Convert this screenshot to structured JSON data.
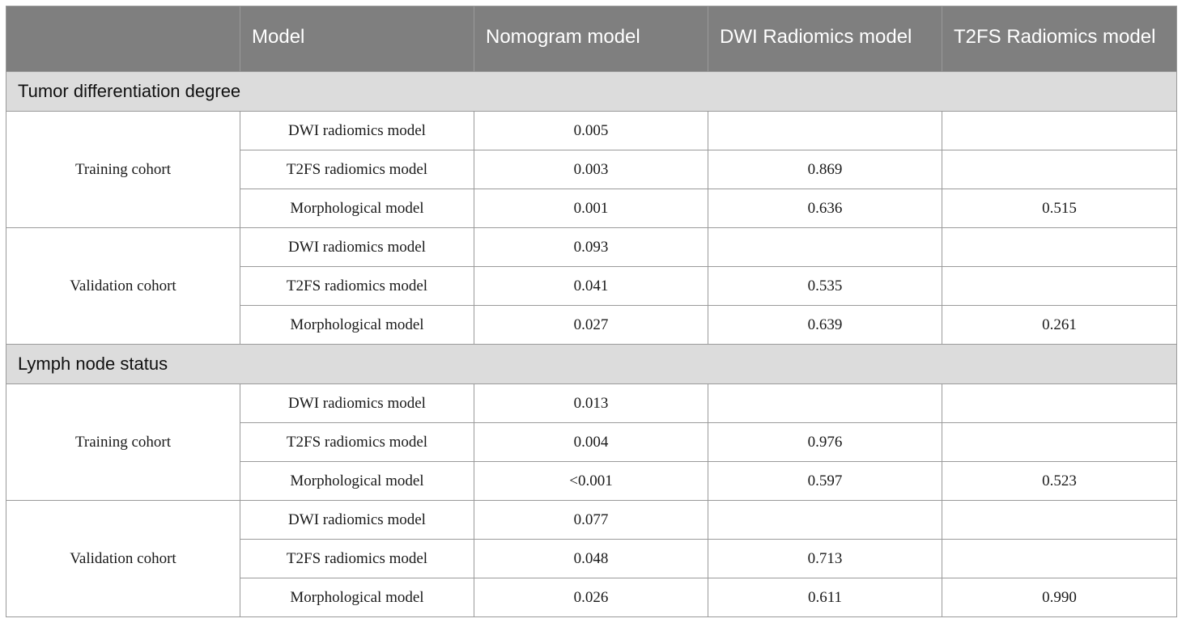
{
  "header": {
    "col0": "",
    "col1": "Model",
    "col2": "Nomogram model",
    "col3": "DWI Radiomics model",
    "col4": "T2FS Radiomics model"
  },
  "sections": [
    {
      "title": "Tumor differentiation degree",
      "groups": [
        {
          "cohort": "Training cohort",
          "rows": [
            {
              "model": "DWI radiomics model",
              "nomogram": "0.005",
              "dwi": "",
              "t2fs": ""
            },
            {
              "model": "T2FS radiomics model",
              "nomogram": "0.003",
              "dwi": "0.869",
              "t2fs": ""
            },
            {
              "model": "Morphological model",
              "nomogram": "0.001",
              "dwi": "0.636",
              "t2fs": "0.515"
            }
          ]
        },
        {
          "cohort": "Validation cohort",
          "rows": [
            {
              "model": "DWI radiomics model",
              "nomogram": "0.093",
              "dwi": "",
              "t2fs": ""
            },
            {
              "model": "T2FS radiomics model",
              "nomogram": "0.041",
              "dwi": "0.535",
              "t2fs": ""
            },
            {
              "model": "Morphological model",
              "nomogram": "0.027",
              "dwi": "0.639",
              "t2fs": "0.261"
            }
          ]
        }
      ]
    },
    {
      "title": "Lymph node status",
      "groups": [
        {
          "cohort": "Training cohort",
          "rows": [
            {
              "model": "DWI radiomics model",
              "nomogram": "0.013",
              "dwi": "",
              "t2fs": ""
            },
            {
              "model": "T2FS radiomics model",
              "nomogram": "0.004",
              "dwi": "0.976",
              "t2fs": ""
            },
            {
              "model": "Morphological model",
              "nomogram": "<0.001",
              "dwi": "0.597",
              "t2fs": "0.523"
            }
          ]
        },
        {
          "cohort": "Validation cohort",
          "rows": [
            {
              "model": "DWI radiomics model",
              "nomogram": "0.077",
              "dwi": "",
              "t2fs": ""
            },
            {
              "model": "T2FS radiomics model",
              "nomogram": "0.048",
              "dwi": "0.713",
              "t2fs": ""
            },
            {
              "model": "Morphological model",
              "nomogram": "0.026",
              "dwi": "0.611",
              "t2fs": "0.990"
            }
          ]
        }
      ]
    }
  ]
}
